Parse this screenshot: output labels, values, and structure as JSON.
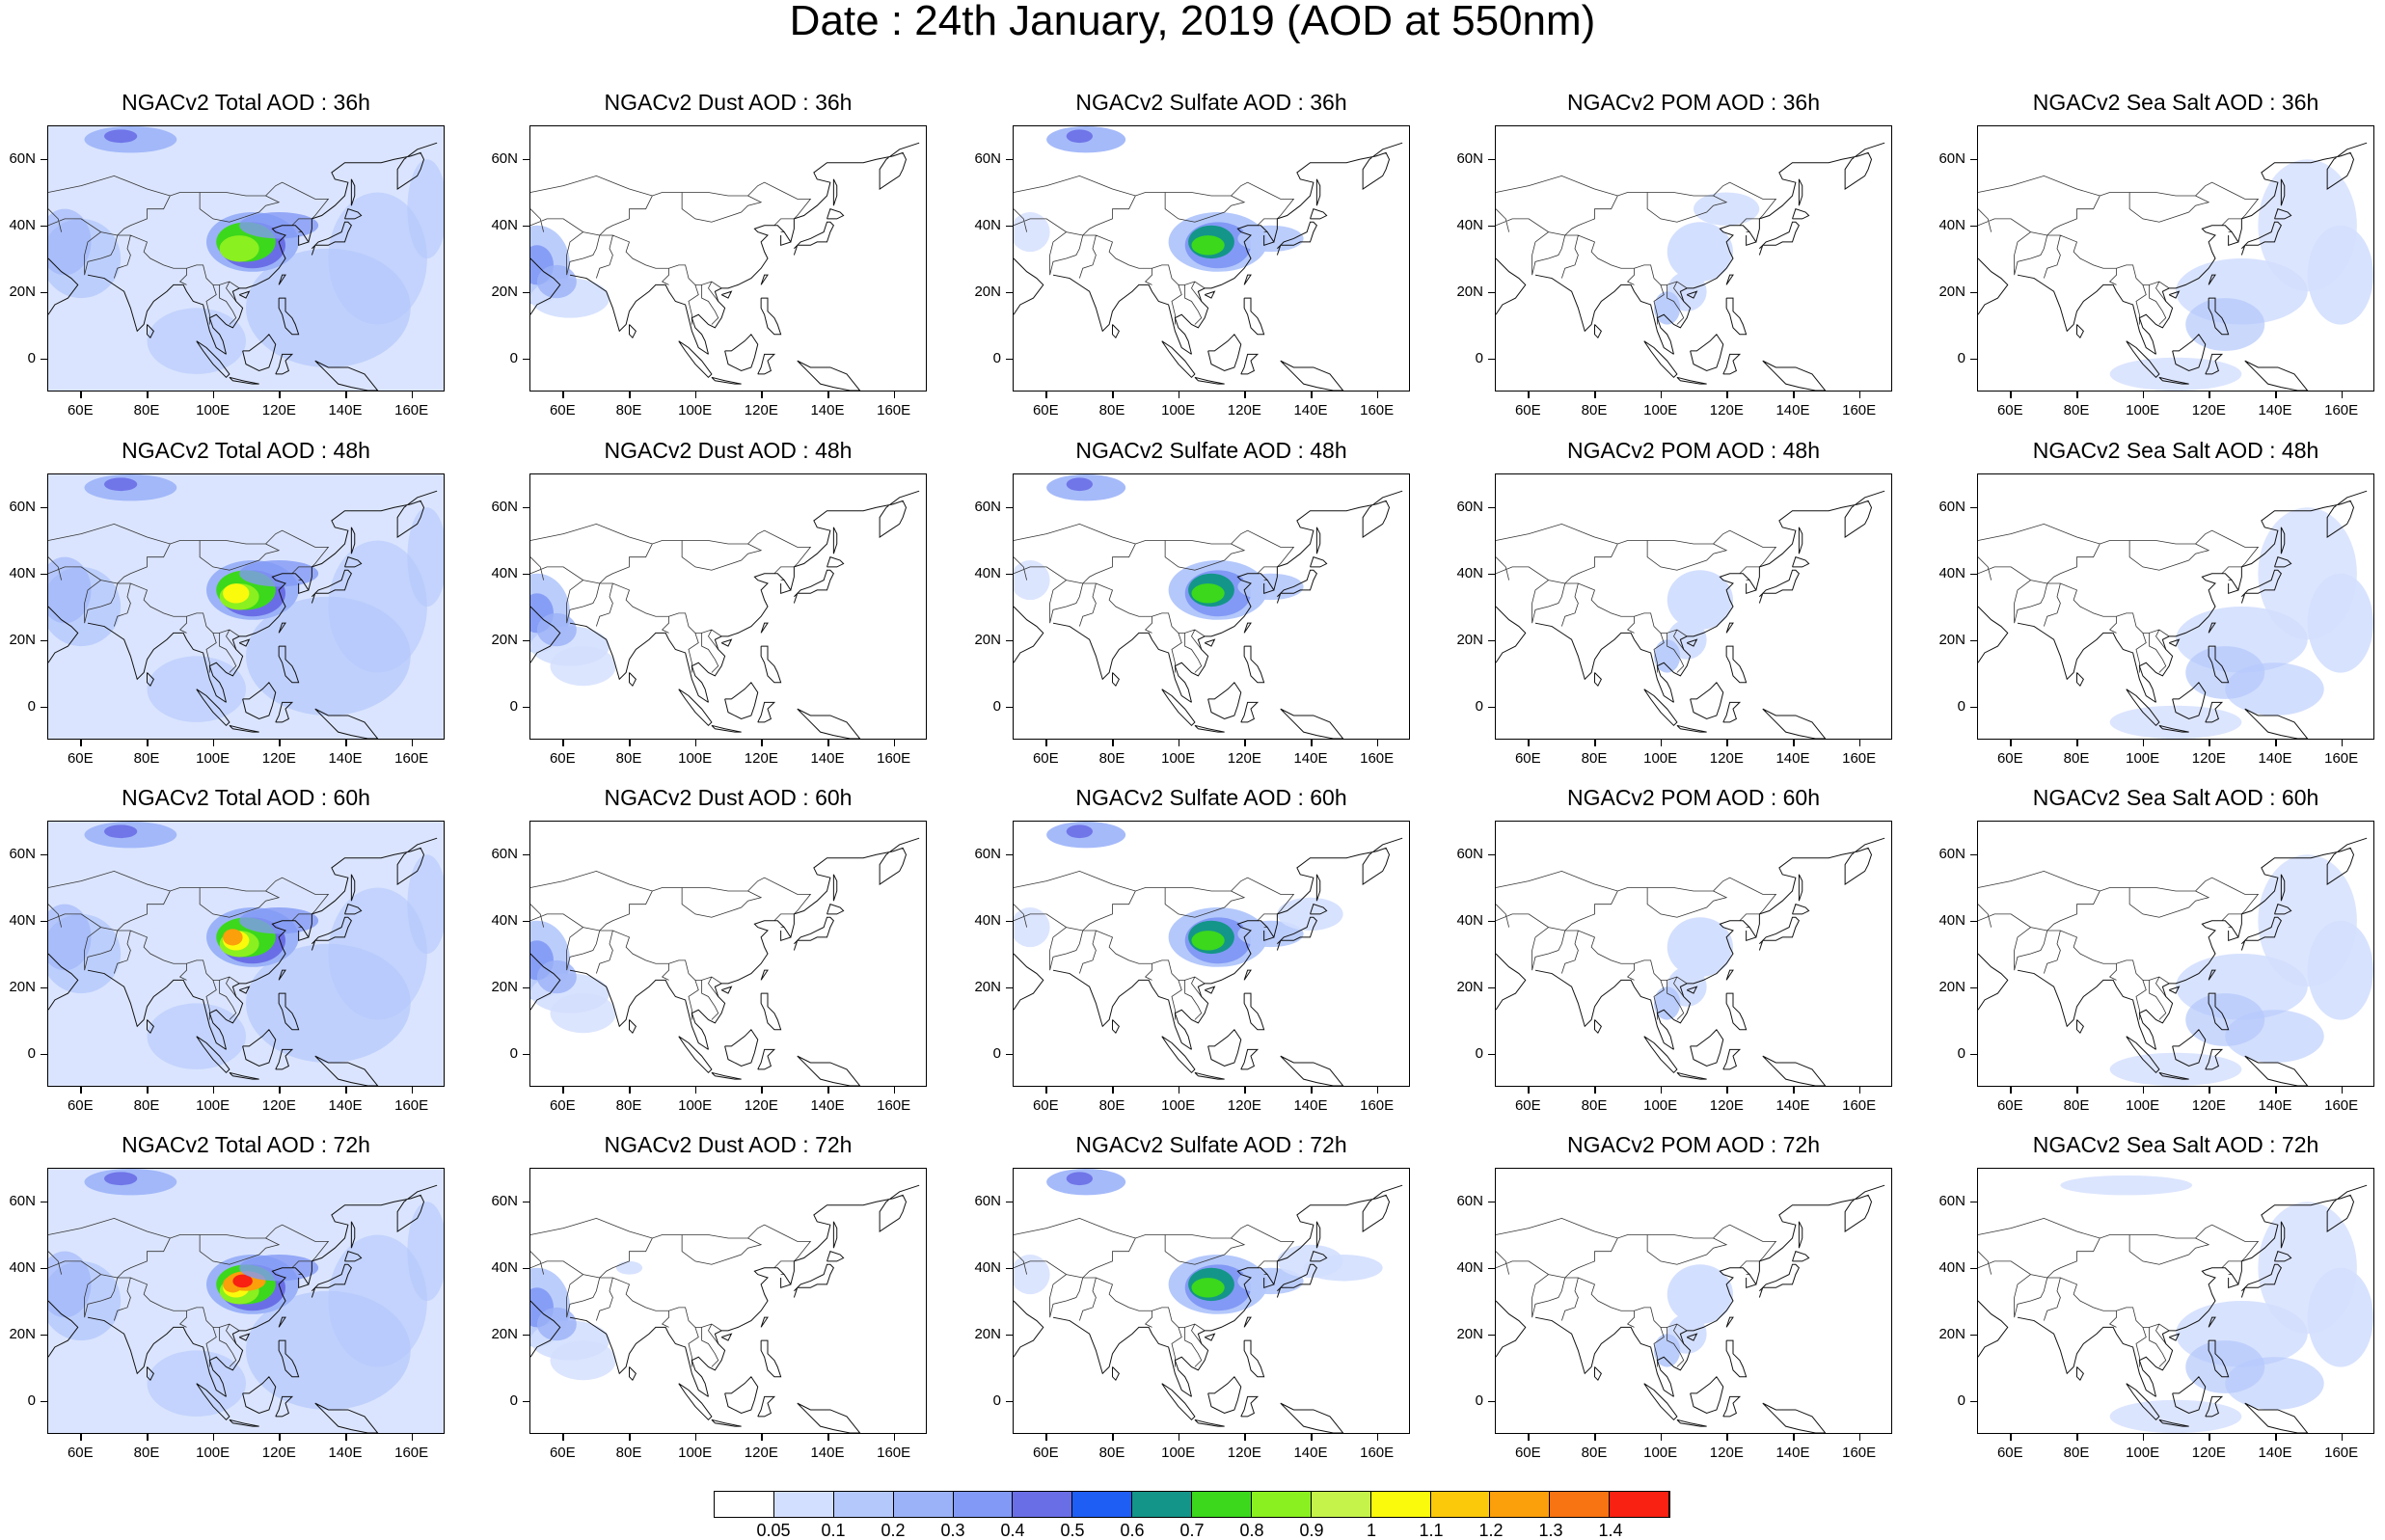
{
  "title": "Date : 24th January, 2019 (AOD at 550nm)",
  "panel_titles": [
    [
      "NGACv2 Total AOD : 36h",
      "NGACv2 Dust AOD : 36h",
      "NGACv2 Sulfate AOD : 36h",
      "NGACv2 POM AOD : 36h",
      "NGACv2 Sea Salt AOD : 36h"
    ],
    [
      "NGACv2 Total AOD : 48h",
      "NGACv2 Dust AOD : 48h",
      "NGACv2 Sulfate AOD : 48h",
      "NGACv2 POM AOD : 48h",
      "NGACv2 Sea Salt AOD : 48h"
    ],
    [
      "NGACv2 Total AOD : 60h",
      "NGACv2 Dust AOD : 60h",
      "NGACv2 Sulfate AOD : 60h",
      "NGACv2 POM AOD : 60h",
      "NGACv2 Sea Salt AOD : 60h"
    ],
    [
      "NGACv2 Total AOD : 72h",
      "NGACv2 Dust AOD : 72h",
      "NGACv2 Sulfate AOD : 72h",
      "NGACv2 POM AOD : 72h",
      "NGACv2 Sea Salt  AOD : 72h"
    ]
  ],
  "lat_ticks": [
    "60N",
    "40N",
    "20N",
    "0"
  ],
  "lon_ticks": [
    "60E",
    "80E",
    "100E",
    "120E",
    "140E",
    "160E"
  ],
  "colorbar": {
    "labels": [
      "0.05",
      "0.1",
      "0.2",
      "0.3",
      "0.4",
      "0.5",
      "0.6",
      "0.7",
      "0.8",
      "0.9",
      "1",
      "1.1",
      "1.2",
      "1.3",
      "1.4"
    ],
    "colors": [
      "#ffffff",
      "#d3dffe",
      "#b4c8fb",
      "#9bb2f8",
      "#8299f5",
      "#6a6ee6",
      "#1f5ef5",
      "#149589",
      "#3bd81c",
      "#8bf01f",
      "#c6f34a",
      "#fafa0c",
      "#fcc90a",
      "#fb9f0b",
      "#f87311",
      "#f82112"
    ]
  },
  "chart_data": {
    "type": "heatmap",
    "description_variable": "AOD at 550nm",
    "lon_range": [
      50,
      170
    ],
    "lat_range": [
      -10,
      70
    ],
    "rows_forecast_hours": [
      "36h",
      "48h",
      "60h",
      "72h"
    ],
    "columns_species": [
      "Total",
      "Dust",
      "Sulfate",
      "POM",
      "Sea Salt"
    ]
  }
}
